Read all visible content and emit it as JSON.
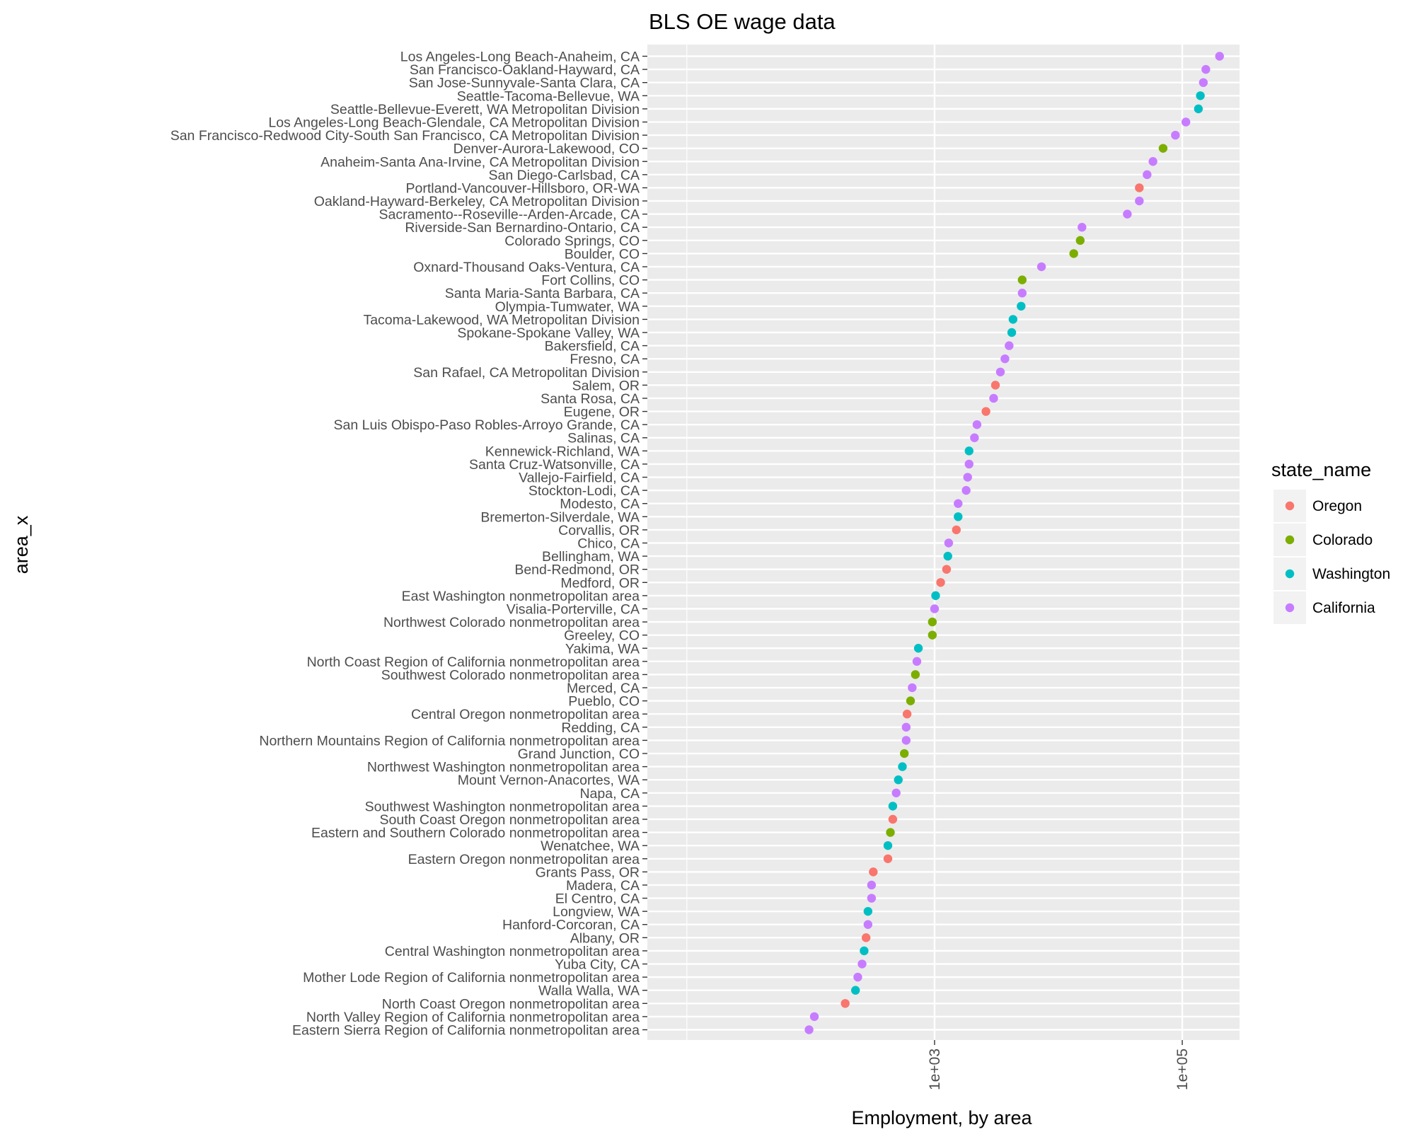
{
  "chart_data": {
    "type": "scatter",
    "title": "BLS OE wage data",
    "xlabel": "Employment, by area",
    "ylabel": "area_x",
    "x_scale": "log10",
    "xlim": [
      4.8,
      290000
    ],
    "x_ticks": [
      1000,
      100000
    ],
    "x_tick_labels": [
      "1e+03",
      "1e+05"
    ],
    "grid": true,
    "legend": {
      "title": "state_name",
      "placement": "right",
      "entries": [
        {
          "name": "Oregon",
          "color": "#F8766D"
        },
        {
          "name": "Colorado",
          "color": "#7CAE00"
        },
        {
          "name": "Washington",
          "color": "#00BFC4"
        },
        {
          "name": "California",
          "color": "#C77CFF"
        }
      ]
    },
    "points": [
      {
        "area": "Los Angeles-Long Beach-Anaheim, CA",
        "state": "California",
        "x": 200000
      },
      {
        "area": "San Francisco-Oakland-Hayward, CA",
        "state": "California",
        "x": 155000
      },
      {
        "area": "San Jose-Sunnyvale-Santa Clara, CA",
        "state": "California",
        "x": 148000
      },
      {
        "area": "Seattle-Tacoma-Bellevue, WA",
        "state": "Washington",
        "x": 140000
      },
      {
        "area": "Seattle-Bellevue-Everett, WA Metropolitan Division",
        "state": "Washington",
        "x": 135000
      },
      {
        "area": "Los Angeles-Long Beach-Glendale, CA Metropolitan Division",
        "state": "California",
        "x": 107000
      },
      {
        "area": "San Francisco-Redwood City-South San Francisco, CA Metropolitan Division",
        "state": "California",
        "x": 88000
      },
      {
        "area": "Denver-Aurora-Lakewood, CO",
        "state": "Colorado",
        "x": 70000
      },
      {
        "area": "Anaheim-Santa Ana-Irvine, CA Metropolitan Division",
        "state": "California",
        "x": 58000
      },
      {
        "area": "San Diego-Carlsbad, CA",
        "state": "California",
        "x": 52000
      },
      {
        "area": "Portland-Vancouver-Hillsboro, OR-WA",
        "state": "Oregon",
        "x": 45000
      },
      {
        "area": "Oakland-Hayward-Berkeley, CA Metropolitan Division",
        "state": "California",
        "x": 45000
      },
      {
        "area": "Sacramento--Roseville--Arden-Arcade, CA",
        "state": "California",
        "x": 36000
      },
      {
        "area": "Riverside-San Bernardino-Ontario, CA",
        "state": "California",
        "x": 15500
      },
      {
        "area": "Colorado Springs, CO",
        "state": "Colorado",
        "x": 15000
      },
      {
        "area": "Boulder, CO",
        "state": "Colorado",
        "x": 13300
      },
      {
        "area": "Oxnard-Thousand Oaks-Ventura, CA",
        "state": "California",
        "x": 7300
      },
      {
        "area": "Fort Collins, CO",
        "state": "Colorado",
        "x": 5100
      },
      {
        "area": "Santa Maria-Santa Barbara, CA",
        "state": "California",
        "x": 5100
      },
      {
        "area": "Olympia-Tumwater, WA",
        "state": "Washington",
        "x": 5000
      },
      {
        "area": "Tacoma-Lakewood, WA Metropolitan Division",
        "state": "Washington",
        "x": 4300
      },
      {
        "area": "Spokane-Spokane Valley, WA",
        "state": "Washington",
        "x": 4200
      },
      {
        "area": "Bakersfield, CA",
        "state": "California",
        "x": 4000
      },
      {
        "area": "Fresno, CA",
        "state": "California",
        "x": 3700
      },
      {
        "area": "San Rafael, CA Metropolitan Division",
        "state": "California",
        "x": 3400
      },
      {
        "area": "Salem, OR",
        "state": "Oregon",
        "x": 3100
      },
      {
        "area": "Santa Rosa, CA",
        "state": "California",
        "x": 3000
      },
      {
        "area": "Eugene, OR",
        "state": "Oregon",
        "x": 2600
      },
      {
        "area": "San Luis Obispo-Paso Robles-Arroyo Grande, CA",
        "state": "California",
        "x": 2200
      },
      {
        "area": "Salinas, CA",
        "state": "California",
        "x": 2100
      },
      {
        "area": "Kennewick-Richland, WA",
        "state": "Washington",
        "x": 1900
      },
      {
        "area": "Santa Cruz-Watsonville, CA",
        "state": "California",
        "x": 1900
      },
      {
        "area": "Vallejo-Fairfield, CA",
        "state": "California",
        "x": 1850
      },
      {
        "area": "Stockton-Lodi, CA",
        "state": "California",
        "x": 1800
      },
      {
        "area": "Modesto, CA",
        "state": "California",
        "x": 1550
      },
      {
        "area": "Bremerton-Silverdale, WA",
        "state": "Washington",
        "x": 1550
      },
      {
        "area": "Corvallis, OR",
        "state": "Oregon",
        "x": 1500
      },
      {
        "area": "Chico, CA",
        "state": "California",
        "x": 1300
      },
      {
        "area": "Bellingham, WA",
        "state": "Washington",
        "x": 1280
      },
      {
        "area": "Bend-Redmond, OR",
        "state": "Oregon",
        "x": 1250
      },
      {
        "area": "Medford, OR",
        "state": "Oregon",
        "x": 1120
      },
      {
        "area": "East Washington nonmetropolitan area",
        "state": "Washington",
        "x": 1020
      },
      {
        "area": "Visalia-Porterville, CA",
        "state": "California",
        "x": 1000
      },
      {
        "area": "Northwest Colorado nonmetropolitan area",
        "state": "Colorado",
        "x": 960
      },
      {
        "area": "Greeley, CO",
        "state": "Colorado",
        "x": 960
      },
      {
        "area": "Yakima, WA",
        "state": "Washington",
        "x": 740
      },
      {
        "area": "North Coast Region of California nonmetropolitan area",
        "state": "California",
        "x": 720
      },
      {
        "area": "Southwest Colorado nonmetropolitan area",
        "state": "Colorado",
        "x": 700
      },
      {
        "area": "Merced, CA",
        "state": "California",
        "x": 660
      },
      {
        "area": "Pueblo, CO",
        "state": "Colorado",
        "x": 640
      },
      {
        "area": "Central Oregon nonmetropolitan area",
        "state": "Oregon",
        "x": 600
      },
      {
        "area": "Redding, CA",
        "state": "California",
        "x": 590
      },
      {
        "area": "Northern Mountains Region of California nonmetropolitan area",
        "state": "California",
        "x": 590
      },
      {
        "area": "Grand Junction, CO",
        "state": "Colorado",
        "x": 570
      },
      {
        "area": "Northwest Washington nonmetropolitan area",
        "state": "Washington",
        "x": 550
      },
      {
        "area": "Mount Vernon-Anacortes, WA",
        "state": "Washington",
        "x": 510
      },
      {
        "area": "Napa, CA",
        "state": "California",
        "x": 490
      },
      {
        "area": "Southwest Washington nonmetropolitan area",
        "state": "Washington",
        "x": 460
      },
      {
        "area": "South Coast Oregon nonmetropolitan area",
        "state": "Oregon",
        "x": 460
      },
      {
        "area": "Eastern and Southern Colorado nonmetropolitan area",
        "state": "Colorado",
        "x": 440
      },
      {
        "area": "Wenatchee, WA",
        "state": "Washington",
        "x": 420
      },
      {
        "area": "Eastern Oregon nonmetropolitan area",
        "state": "Oregon",
        "x": 420
      },
      {
        "area": "Grants Pass, OR",
        "state": "Oregon",
        "x": 320
      },
      {
        "area": "Madera, CA",
        "state": "California",
        "x": 310
      },
      {
        "area": "El Centro, CA",
        "state": "California",
        "x": 310
      },
      {
        "area": "Longview, WA",
        "state": "Washington",
        "x": 290
      },
      {
        "area": "Hanford-Corcoran, CA",
        "state": "California",
        "x": 290
      },
      {
        "area": "Albany, OR",
        "state": "Oregon",
        "x": 280
      },
      {
        "area": "Central Washington nonmetropolitan area",
        "state": "Washington",
        "x": 270
      },
      {
        "area": "Yuba City, CA",
        "state": "California",
        "x": 260
      },
      {
        "area": "Mother Lode Region of California nonmetropolitan area",
        "state": "California",
        "x": 240
      },
      {
        "area": "Walla Walla, WA",
        "state": "Washington",
        "x": 230
      },
      {
        "area": "North Coast Oregon nonmetropolitan area",
        "state": "Oregon",
        "x": 190
      },
      {
        "area": "North Valley Region of California nonmetropolitan area",
        "state": "California",
        "x": 107
      },
      {
        "area": "Eastern Sierra Region of California nonmetropolitan area",
        "state": "California",
        "x": 97
      }
    ]
  }
}
